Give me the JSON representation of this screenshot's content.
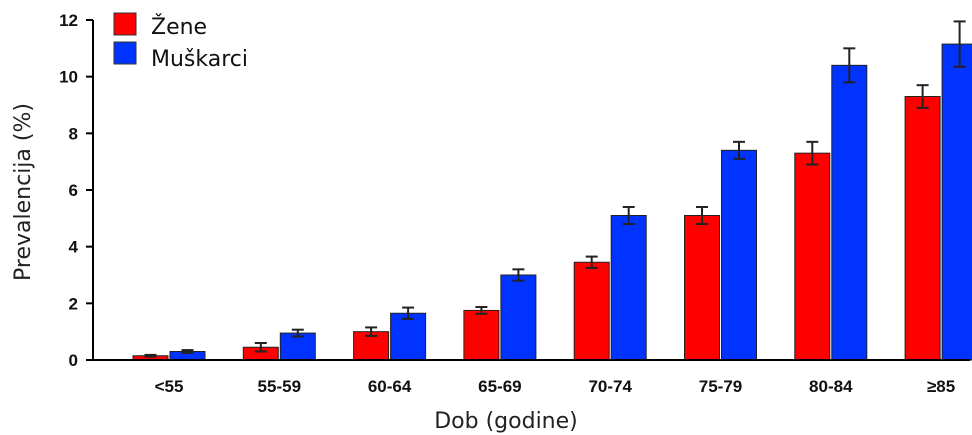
{
  "chart_data": {
    "type": "bar",
    "title": "",
    "xlabel": "Dob (godine)",
    "ylabel": "Prevalencija (%)",
    "ylim": [
      0,
      12
    ],
    "yticks": [
      "0",
      "2",
      "4",
      "6",
      "8",
      "10",
      "12"
    ],
    "categories": [
      "<55",
      "55-59",
      "60-64",
      "65-69",
      "70-74",
      "75-79",
      "80-84",
      "≥85"
    ],
    "series": [
      {
        "name": "Žene",
        "color": "#ff0000",
        "values": [
          0.15,
          0.45,
          1.0,
          1.75,
          3.45,
          5.1,
          7.3,
          9.3
        ],
        "errors": [
          0.03,
          0.15,
          0.15,
          0.12,
          0.2,
          0.3,
          0.4,
          0.4
        ]
      },
      {
        "name": "Muškarci",
        "color": "#0033ff",
        "values": [
          0.3,
          0.95,
          1.65,
          3.0,
          5.1,
          7.4,
          10.4,
          11.15
        ],
        "errors": [
          0.05,
          0.12,
          0.2,
          0.2,
          0.3,
          0.3,
          0.6,
          0.8
        ]
      }
    ],
    "legend": "top-left"
  }
}
